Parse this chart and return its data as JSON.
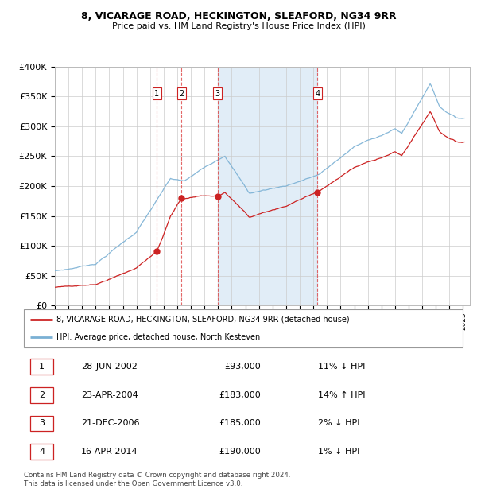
{
  "title1": "8, VICARAGE ROAD, HECKINGTON, SLEAFORD, NG34 9RR",
  "title2": "Price paid vs. HM Land Registry's House Price Index (HPI)",
  "legend_line1": "8, VICARAGE ROAD, HECKINGTON, SLEAFORD, NG34 9RR (detached house)",
  "legend_line2": "HPI: Average price, detached house, North Kesteven",
  "footer": "Contains HM Land Registry data © Crown copyright and database right 2024.\nThis data is licensed under the Open Government Licence v3.0.",
  "transactions": [
    {
      "num": 1,
      "date": "28-JUN-2002",
      "price": 93000,
      "hpi_diff": "11% ↓ HPI",
      "decimal_date": 2002.49
    },
    {
      "num": 2,
      "date": "23-APR-2004",
      "price": 183000,
      "hpi_diff": "14% ↑ HPI",
      "decimal_date": 2004.31
    },
    {
      "num": 3,
      "date": "21-DEC-2006",
      "price": 185000,
      "hpi_diff": "2% ↓ HPI",
      "decimal_date": 2006.97
    },
    {
      "num": 4,
      "date": "16-APR-2014",
      "price": 190000,
      "hpi_diff": "1% ↓ HPI",
      "decimal_date": 2014.29
    }
  ],
  "shaded_region": [
    2006.97,
    2014.29
  ],
  "hpi_line_color": "#7ab0d4",
  "price_line_color": "#cc2222",
  "dashed_line_color": "#dd4444",
  "bg_color": "#ffffff",
  "grid_color": "#cccccc",
  "ylim": [
    0,
    400000
  ],
  "yticks": [
    0,
    50000,
    100000,
    150000,
    200000,
    250000,
    300000,
    350000,
    400000
  ],
  "xstart": 1995.0,
  "xend": 2025.5,
  "table_rows": [
    {
      "num": "1",
      "date": "28-JUN-2002",
      "price": "£93,000",
      "diff": "11% ↓ HPI"
    },
    {
      "num": "2",
      "date": "23-APR-2004",
      "price": "£183,000",
      "diff": "14% ↑ HPI"
    },
    {
      "num": "3",
      "date": "21-DEC-2006",
      "price": "£185,000",
      "diff": "2% ↓ HPI"
    },
    {
      "num": "4",
      "date": "16-APR-2014",
      "price": "£190,000",
      "diff": "1% ↓ HPI"
    }
  ]
}
